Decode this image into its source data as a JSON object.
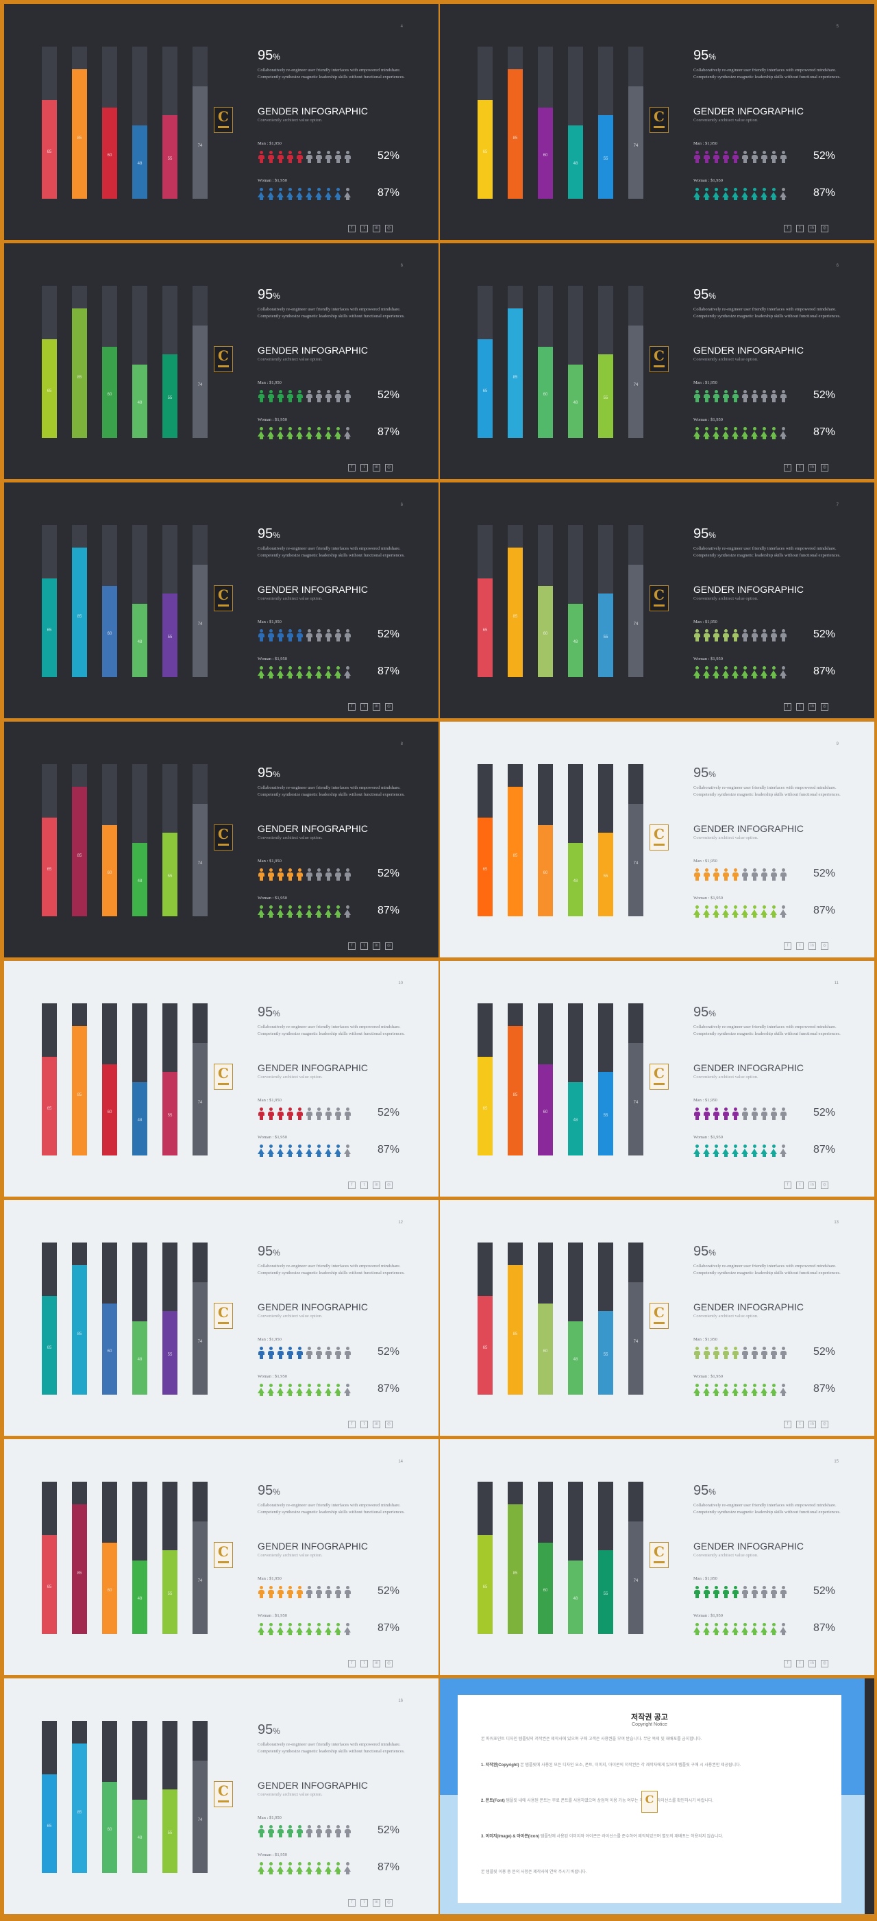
{
  "common": {
    "headline_value": "95",
    "headline_unit": "%",
    "description": "Collaboratively re-engineer user friendly interfaces with empowered mindshare. Competently synthesize magnetic leadership skills without functional experiences.",
    "title": "GENDER INFOGRAPHIC",
    "subtitle": "Conveniently architect value option.",
    "men_label": "Man : $1,950",
    "men_percent": "52%",
    "women_label": "Woman : $1,950",
    "women_percent": "87%",
    "bar_labels": [
      "65",
      "85",
      "60",
      "48",
      "55",
      "74"
    ],
    "social_icons": [
      "facebook-icon",
      "twitter-icon",
      "linkedin-icon",
      "instagram-icon"
    ],
    "social_glyphs": [
      "f",
      "t",
      "in",
      "◎"
    ],
    "logo_letter": "C"
  },
  "chart_data": {
    "type": "bar",
    "categories": [
      "1",
      "2",
      "3",
      "4",
      "5",
      "6"
    ],
    "values": [
      65,
      85,
      60,
      48,
      55,
      74
    ],
    "ylim": [
      0,
      100
    ],
    "men_icons_filled": 5,
    "women_icons_filled": 9,
    "icons_total": 10
  },
  "slides": [
    {
      "page": "4",
      "theme": "dark",
      "colors": [
        "#e04a57",
        "#f78f2a",
        "#d02a3a",
        "#2b73b1",
        "#c2345c",
        "#5d616c"
      ],
      "men_color": "#c8283a",
      "women_color": "#2f76b8"
    },
    {
      "page": "5",
      "theme": "dark",
      "colors": [
        "#f5c81a",
        "#f0651e",
        "#8a2a9a",
        "#13a89e",
        "#1f8fdb",
        "#5d616c"
      ],
      "men_color": "#8b2a9c",
      "women_color": "#15a89b"
    },
    {
      "page": "6",
      "theme": "dark",
      "colors": [
        "#a5c82a",
        "#7db33a",
        "#3aa24a",
        "#5dbb66",
        "#10986a",
        "#5d616c"
      ],
      "men_color": "#29a24e",
      "women_color": "#6cc04a"
    },
    {
      "page": "6",
      "theme": "dark",
      "colors": [
        "#249ed8",
        "#2aa8d8",
        "#52b86a",
        "#5dbb66",
        "#8cc63a",
        "#5d616c"
      ],
      "men_color": "#4bb366",
      "women_color": "#6cc04a"
    },
    {
      "page": "6",
      "theme": "dark",
      "colors": [
        "#12a3a0",
        "#1fa6c8",
        "#3e73b5",
        "#5dbb66",
        "#6a3fa0",
        "#5d616c"
      ],
      "men_color": "#2d6db5",
      "women_color": "#6cc04a"
    },
    {
      "page": "7",
      "theme": "dark",
      "colors": [
        "#e04a57",
        "#f5ae1a",
        "#a3c466",
        "#5dbb66",
        "#3a97cc",
        "#5d616c"
      ],
      "men_color": "#a3c466",
      "women_color": "#6cc04a"
    },
    {
      "page": "8",
      "theme": "dark",
      "colors": [
        "#e04a57",
        "#a12950",
        "#f78f2a",
        "#3fb24a",
        "#8cc63a",
        "#5d616c"
      ],
      "men_color": "#f39a2e",
      "women_color": "#6cc04a"
    },
    {
      "page": "9",
      "theme": "light",
      "colors": [
        "#ff6a10",
        "#ff8a18",
        "#f78f2a",
        "#8cc63a",
        "#f8a81c",
        "#5d616c"
      ],
      "men_color": "#f39a2e",
      "women_color": "#8cc63a"
    },
    {
      "page": "10",
      "theme": "light",
      "colors": [
        "#e04a57",
        "#f78f2a",
        "#d02a3a",
        "#2b73b1",
        "#c2345c",
        "#5d616c"
      ],
      "men_color": "#c8283a",
      "women_color": "#2f76b8"
    },
    {
      "page": "11",
      "theme": "light",
      "colors": [
        "#f5c81a",
        "#f0651e",
        "#8a2a9a",
        "#13a89e",
        "#1f8fdb",
        "#5d616c"
      ],
      "men_color": "#8b2a9c",
      "women_color": "#15a89b"
    },
    {
      "page": "12",
      "theme": "light",
      "colors": [
        "#12a3a0",
        "#1fa6c8",
        "#3e73b5",
        "#5dbb66",
        "#6a3fa0",
        "#5d616c"
      ],
      "men_color": "#2d6db5",
      "women_color": "#6cc04a"
    },
    {
      "page": "13",
      "theme": "light",
      "colors": [
        "#e04a57",
        "#f5ae1a",
        "#a3c466",
        "#5dbb66",
        "#3a97cc",
        "#5d616c"
      ],
      "men_color": "#a3c466",
      "women_color": "#6cc04a"
    },
    {
      "page": "14",
      "theme": "light",
      "colors": [
        "#e04a57",
        "#a12950",
        "#f78f2a",
        "#3fb24a",
        "#8cc63a",
        "#5d616c"
      ],
      "men_color": "#f39a2e",
      "women_color": "#6cc04a"
    },
    {
      "page": "15",
      "theme": "light",
      "colors": [
        "#a5c82a",
        "#7db33a",
        "#3aa24a",
        "#5dbb66",
        "#10986a",
        "#5d616c"
      ],
      "men_color": "#29a24e",
      "women_color": "#6cc04a"
    },
    {
      "page": "16",
      "theme": "light",
      "colors": [
        "#249ed8",
        "#2aa8d8",
        "#52b86a",
        "#5dbb66",
        "#8cc63a",
        "#5d616c"
      ],
      "men_color": "#4bb366",
      "women_color": "#6cc04a"
    }
  ],
  "copyright": {
    "title": "저작권 공고",
    "subtitle": "Copyright Notice",
    "intro": "본 파워포인트 디자인 템플릿의 저작권은 제작사에 있으며 구매 고객은 사용권을 부여 받습니다. 무단 복제 및 재배포를 금지합니다.",
    "p1_head": "1. 저작권(Copyright)",
    "p1_body": "본 템플릿에 사용된 모든 디자인 요소, 폰트, 이미지, 아이콘의 저작권은 각 제작자에게 있으며 템플릿 구매 시 사용권만 제공됩니다.",
    "p2_head": "2. 폰트(Font)",
    "p2_body": "템플릿 내에 사용된 폰트는 무료 폰트를 사용하였으며 상업적 이용 가능 여부는 각 폰트의 라이선스를 확인하시기 바랍니다.",
    "p3_head": "3. 이미지(Image) & 아이콘(Icon)",
    "p3_body": "템플릿에 사용된 이미지와 아이콘은 라이선스를 준수하여 제작되었으며 별도의 재배포는 허용되지 않습니다.",
    "outro": "본 템플릿 이용 중 문의 사항은 제작사에 연락 주시기 바랍니다."
  }
}
